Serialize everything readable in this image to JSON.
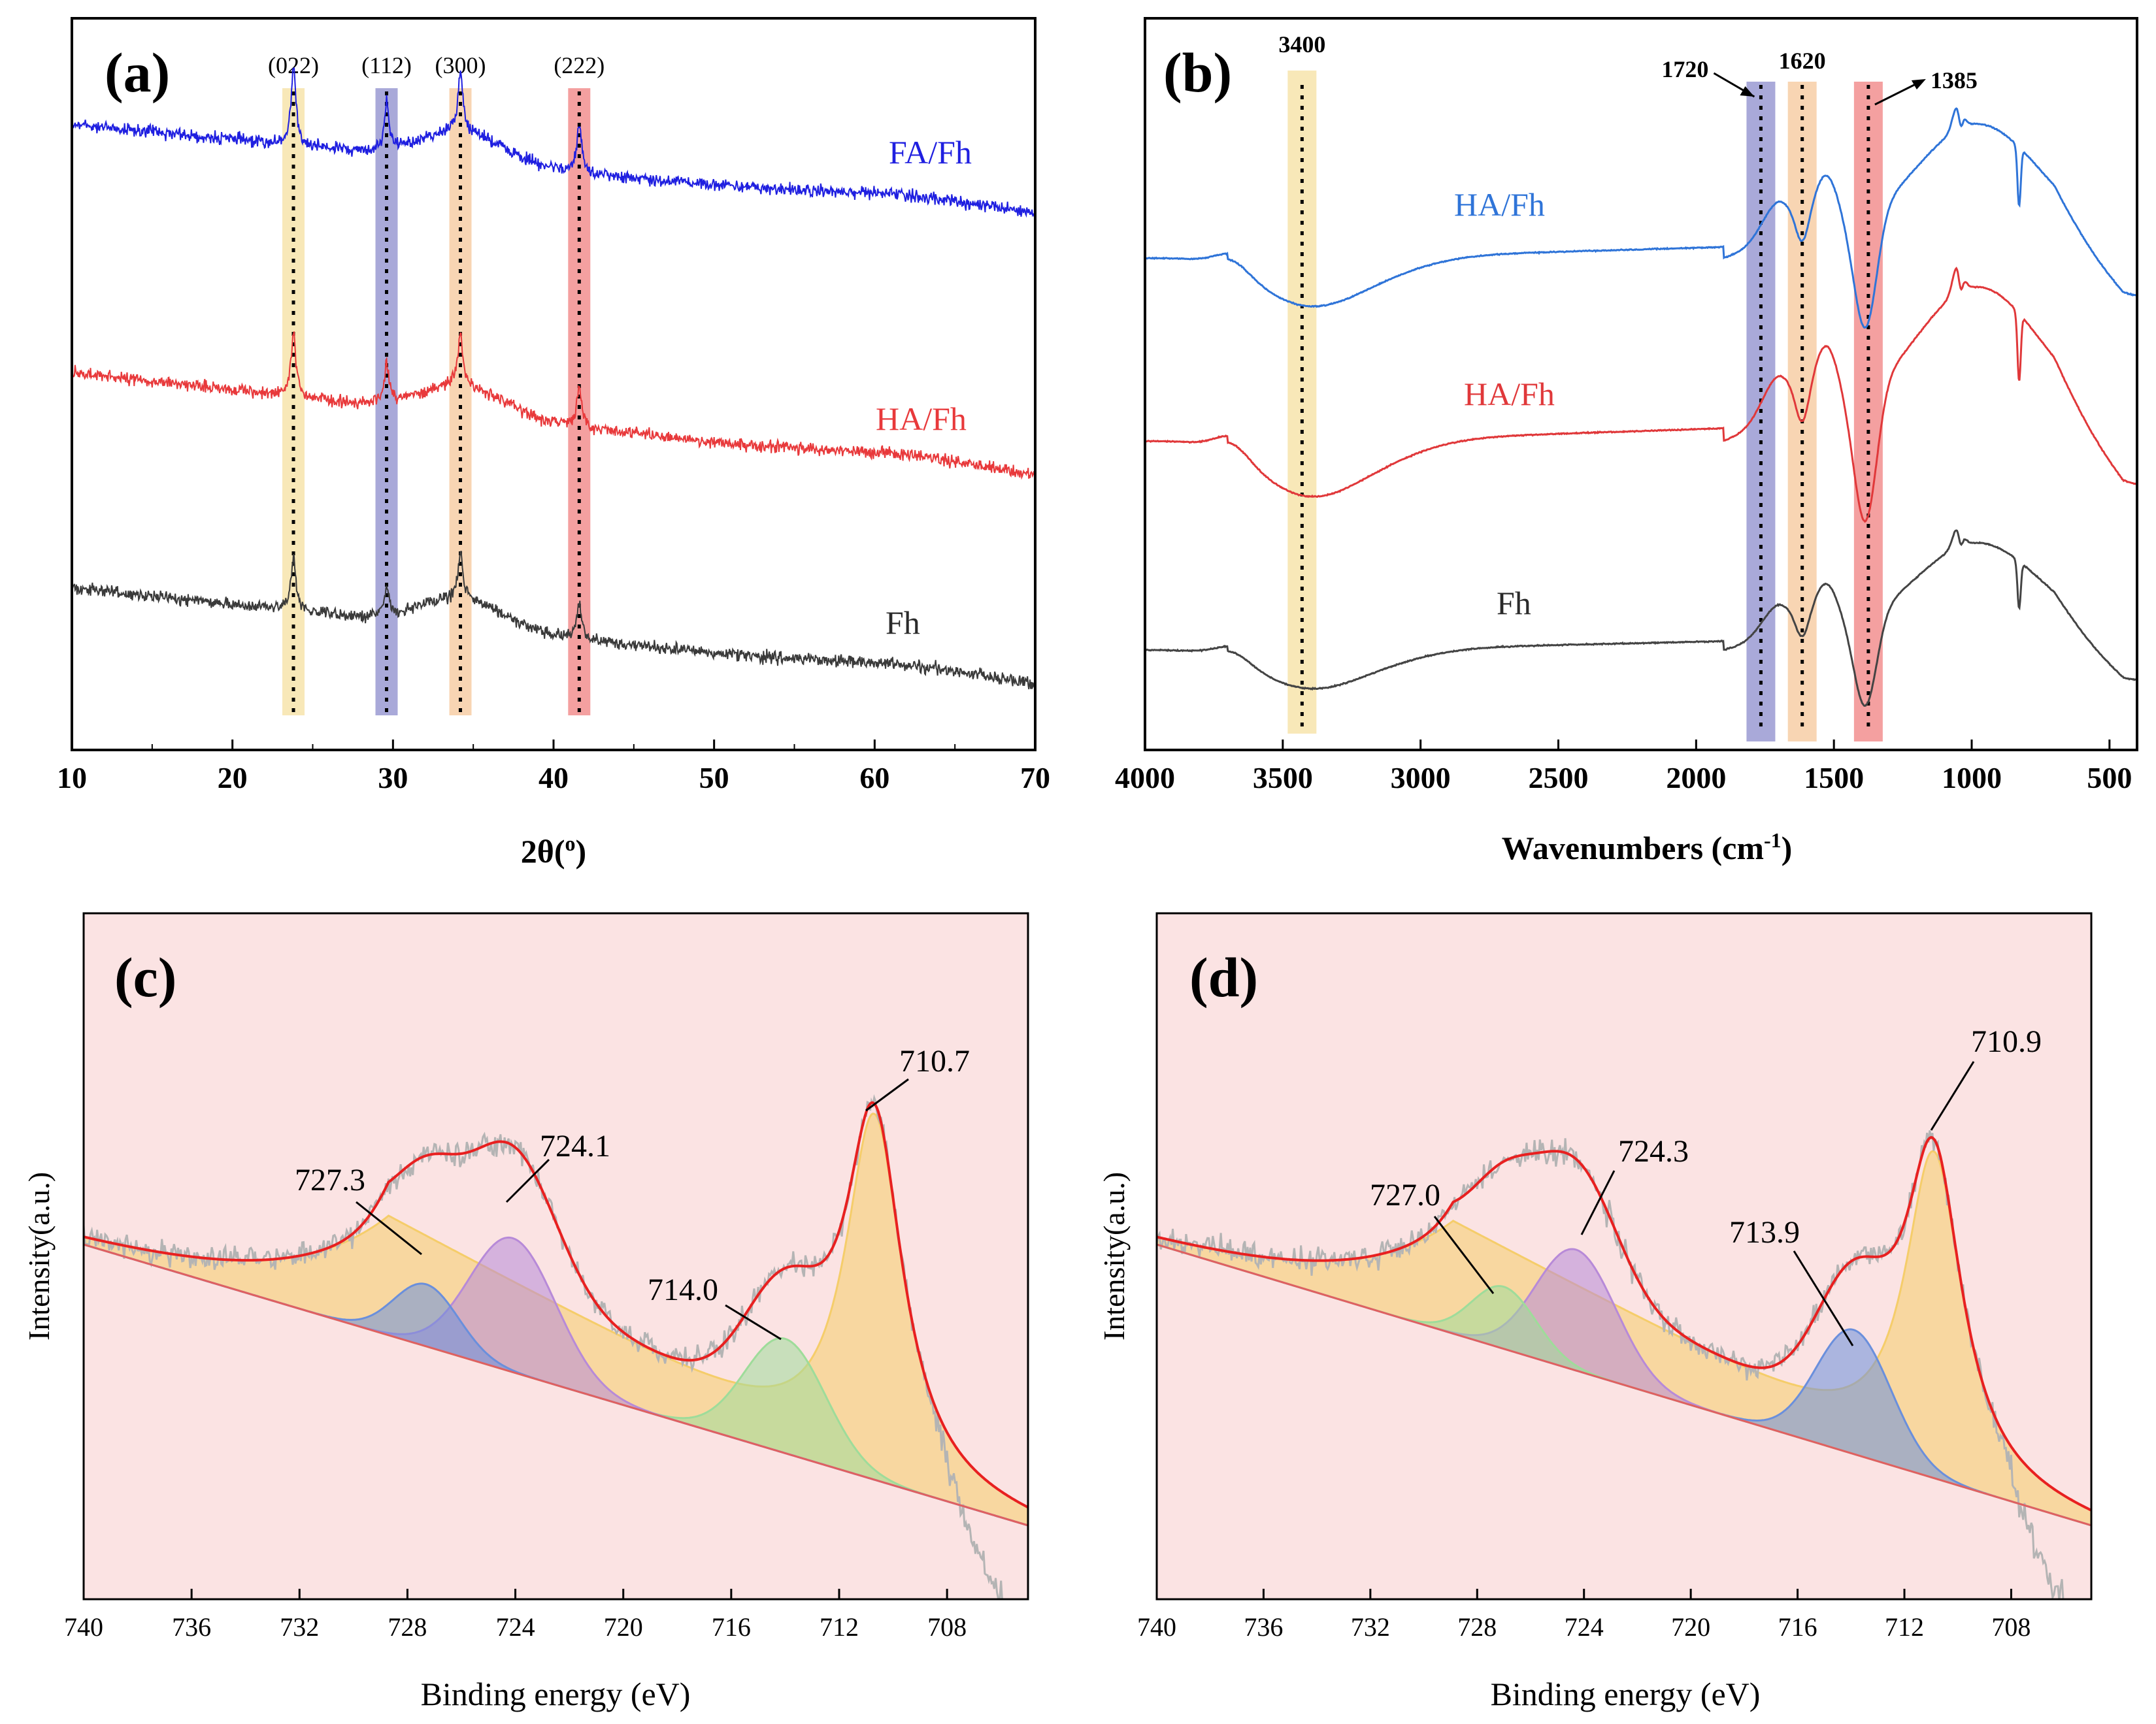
{
  "colors": {
    "blue": "#1f1fe0",
    "red": "#e8393b",
    "dark": "#3a3a3a",
    "ftir_blue": "#2f74d8",
    "ftir_red": "#e0383a",
    "ftir_dark": "#444444",
    "pink_bg": "#fbe3e3",
    "yellow_band": "#f6e0a0",
    "violet_band": "#8c8ccc",
    "orange_band": "#f6c79a",
    "red_band": "#f08080",
    "fit_red": "#e82020",
    "raw_gray": "#b4b4b4",
    "fill_yellow": "#f5cd6a",
    "fill_violet": "#b78ad8",
    "fill_blue": "#6a8fdc",
    "fill_green": "#9edc9a",
    "baseline_red": "#e06060"
  },
  "chart_data": [
    {
      "panel": "(a)",
      "type": "line",
      "xlabel": "2θ(",
      "xlabel_sup": "o",
      "xlabel_end": ")",
      "xlim": [
        10,
        70
      ],
      "xticks": [
        "10",
        "20",
        "30",
        "40",
        "50",
        "60",
        "70"
      ],
      "series": [
        {
          "name": "FA/Fh",
          "color": "blue",
          "peaks": [
            23.8,
            29.6,
            34.2,
            41.6
          ],
          "offset": 2
        }
      ],
      "series_extra": [
        {
          "name": "HA/Fh",
          "color": "red",
          "peaks": [
            23.8,
            29.6,
            34.2,
            41.6
          ],
          "offset": 1
        },
        {
          "name": "Fh",
          "color": "dark",
          "peaks": [
            23.8,
            29.6,
            34.2,
            41.6
          ],
          "offset": 0
        }
      ],
      "bands": [
        {
          "label": "(022)",
          "x": 23.8,
          "color": "yellow_band"
        },
        {
          "label": "(112)",
          "x": 29.6,
          "color": "violet_band"
        },
        {
          "label": "(300)",
          "x": 34.2,
          "color": "orange_band"
        },
        {
          "label": "(222)",
          "x": 41.6,
          "color": "red_band"
        }
      ]
    },
    {
      "panel": "(b)",
      "type": "line",
      "xlabel": "Wavenumbers (cm",
      "xlabel_sup": "-1",
      "xlabel_end": ")",
      "xlim": [
        4000,
        400
      ],
      "xticks": [
        "4000",
        "3500",
        "3000",
        "2500",
        "2000",
        "1500",
        "1000",
        "500"
      ],
      "series": [
        {
          "name": "HA/Fh",
          "color": "ftir_blue",
          "offset": 2
        },
        {
          "name": "HA/Fh",
          "color": "ftir_red",
          "offset": 1
        },
        {
          "name": "Fh",
          "color": "ftir_dark",
          "offset": 0
        }
      ],
      "bands": [
        {
          "label": "3400",
          "x": 3430,
          "color": "yellow_band"
        },
        {
          "label": "1720",
          "x": 1765,
          "color": "violet_band"
        },
        {
          "label": "1620",
          "x": 1615,
          "color": "orange_band"
        },
        {
          "label": "1385",
          "x": 1375,
          "color": "red_band"
        }
      ]
    },
    {
      "panel": "(c)",
      "type": "area",
      "xlabel": "Binding energy (eV)",
      "ylabel": "Intensity(a.u.)",
      "xlim": [
        740,
        705
      ],
      "xticks": [
        "740",
        "736",
        "732",
        "728",
        "724",
        "720",
        "716",
        "712",
        "708"
      ],
      "peaks": [
        {
          "label": "710.7",
          "center": 710.7,
          "color": "fill_yellow"
        },
        {
          "label": "714.0",
          "center": 714.0,
          "color": "fill_green"
        },
        {
          "label": "724.1",
          "center": 724.1,
          "color": "fill_violet"
        },
        {
          "label": "727.3",
          "center": 727.3,
          "color": "fill_blue"
        }
      ]
    },
    {
      "panel": "(d)",
      "type": "area",
      "xlabel": "Binding energy (eV)",
      "ylabel": "Intensity(a.u.)",
      "xlim": [
        740,
        705
      ],
      "xticks": [
        "740",
        "736",
        "732",
        "728",
        "724",
        "720",
        "716",
        "712",
        "708"
      ],
      "peaks": [
        {
          "label": "710.9",
          "center": 710.9,
          "color": "fill_yellow"
        },
        {
          "label": "713.9",
          "center": 713.9,
          "color": "fill_blue"
        },
        {
          "label": "724.3",
          "center": 724.3,
          "color": "fill_violet"
        },
        {
          "label": "727.0",
          "center": 727.0,
          "color": "fill_green"
        }
      ]
    }
  ]
}
